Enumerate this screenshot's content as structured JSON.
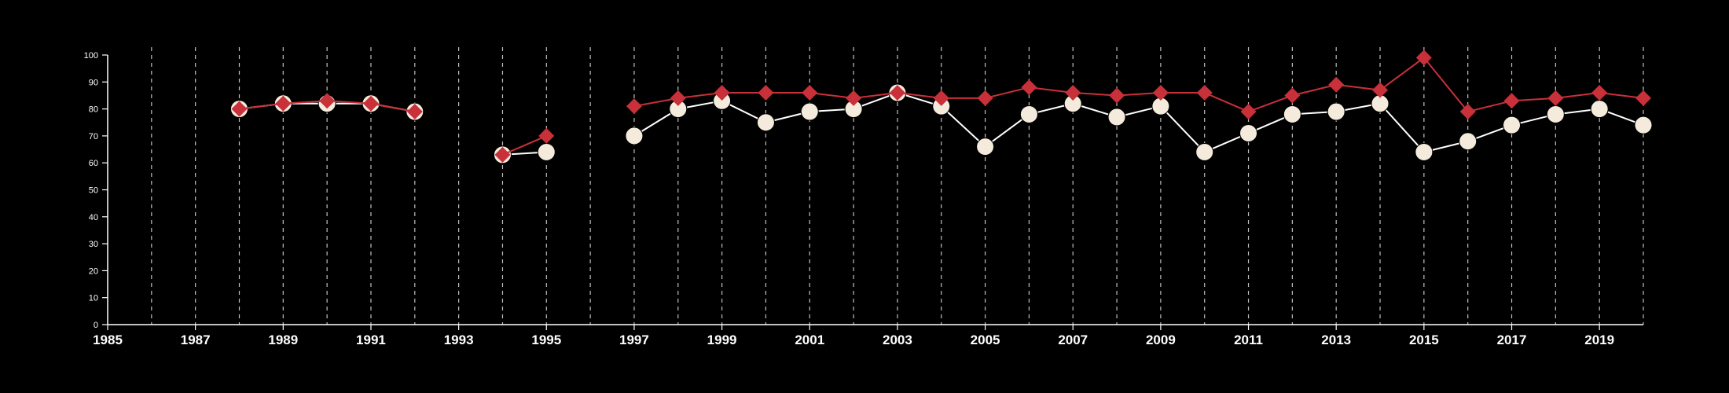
{
  "chart_data": {
    "type": "line",
    "title": "",
    "xlabel": "",
    "ylabel": "",
    "xlim": [
      1985,
      2020
    ],
    "ylim": [
      0,
      100
    ],
    "x_ticks": [
      1985,
      1987,
      1989,
      1991,
      1993,
      1995,
      1997,
      1999,
      2001,
      2003,
      2005,
      2007,
      2009,
      2011,
      2013,
      2015,
      2017,
      2019
    ],
    "y_ticks": [
      0,
      10,
      20,
      30,
      40,
      50,
      60,
      70,
      80,
      90,
      100
    ],
    "vertical_gridlines_years": [
      1986,
      1987,
      1988,
      1989,
      1990,
      1991,
      1992,
      1993,
      1994,
      1995,
      1996,
      1997,
      1998,
      1999,
      2000,
      2001,
      2002,
      2003,
      2004,
      2005,
      2006,
      2007,
      2008,
      2009,
      2010,
      2011,
      2012,
      2013,
      2014,
      2015,
      2016,
      2017,
      2018,
      2019,
      2020
    ],
    "grid": "vertical dashed",
    "legend": "none",
    "background_color": "#000000",
    "series": [
      {
        "marker": "circle",
        "color": "#f5ebdc",
        "line_color": "#ffffff",
        "segments": [
          [
            [
              1988,
              80
            ],
            [
              1989,
              82
            ],
            [
              1990,
              82
            ],
            [
              1991,
              82
            ],
            [
              1992,
              79
            ]
          ],
          [
            [
              1994,
              63
            ],
            [
              1995,
              64
            ]
          ],
          [
            [
              1997,
              70
            ],
            [
              1998,
              80
            ],
            [
              1999,
              83
            ],
            [
              2000,
              75
            ],
            [
              2001,
              79
            ],
            [
              2002,
              80
            ],
            [
              2003,
              86
            ],
            [
              2004,
              81
            ],
            [
              2005,
              66
            ],
            [
              2006,
              78
            ],
            [
              2007,
              82
            ],
            [
              2008,
              77
            ],
            [
              2009,
              81
            ],
            [
              2010,
              64
            ],
            [
              2011,
              71
            ],
            [
              2012,
              78
            ],
            [
              2013,
              79
            ],
            [
              2014,
              82
            ],
            [
              2015,
              64
            ],
            [
              2016,
              68
            ],
            [
              2017,
              74
            ],
            [
              2018,
              78
            ],
            [
              2019,
              80
            ],
            [
              2020,
              74
            ]
          ]
        ]
      },
      {
        "marker": "diamond",
        "color": "#c8303a",
        "line_color": "#c8303a",
        "segments": [
          [
            [
              1988,
              80
            ],
            [
              1989,
              82
            ],
            [
              1990,
              83
            ],
            [
              1991,
              82
            ],
            [
              1992,
              79
            ]
          ],
          [
            [
              1994,
              63
            ],
            [
              1995,
              70
            ]
          ],
          [
            [
              1997,
              81
            ],
            [
              1998,
              84
            ],
            [
              1999,
              86
            ],
            [
              2000,
              86
            ],
            [
              2001,
              86
            ],
            [
              2002,
              84
            ],
            [
              2003,
              86
            ],
            [
              2004,
              84
            ],
            [
              2005,
              84
            ],
            [
              2006,
              88
            ],
            [
              2007,
              86
            ],
            [
              2008,
              85
            ],
            [
              2009,
              86
            ],
            [
              2010,
              86
            ],
            [
              2011,
              79
            ],
            [
              2012,
              85
            ],
            [
              2013,
              89
            ],
            [
              2014,
              87
            ],
            [
              2015,
              99
            ],
            [
              2016,
              79
            ],
            [
              2017,
              83
            ],
            [
              2018,
              84
            ],
            [
              2019,
              86
            ],
            [
              2020,
              84
            ]
          ]
        ]
      }
    ]
  }
}
